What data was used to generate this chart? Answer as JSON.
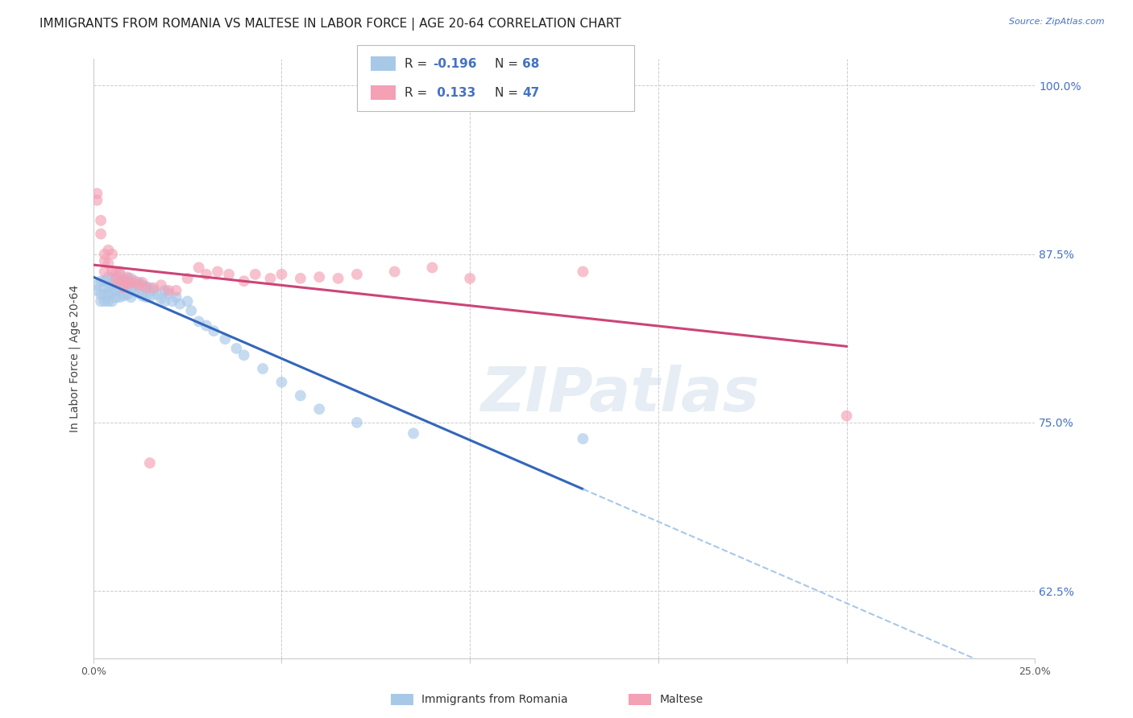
{
  "title": "IMMIGRANTS FROM ROMANIA VS MALTESE IN LABOR FORCE | AGE 20-64 CORRELATION CHART",
  "source": "Source: ZipAtlas.com",
  "ylabel": "In Labor Force | Age 20-64",
  "xlim": [
    0.0,
    0.25
  ],
  "ylim": [
    0.575,
    1.02
  ],
  "yticks": [
    0.625,
    0.75,
    0.875,
    1.0
  ],
  "ytick_labels": [
    "62.5%",
    "75.0%",
    "87.5%",
    "100.0%"
  ],
  "xticks": [
    0.0,
    0.05,
    0.1,
    0.15,
    0.2,
    0.25
  ],
  "xtick_labels": [
    "0.0%",
    "",
    "",
    "",
    "",
    "25.0%"
  ],
  "color_romania": "#a8c8e8",
  "color_maltese": "#f4a0b5",
  "line_color_romania": "#3366bb",
  "line_color_maltese": "#cc4477",
  "R_romania": -0.196,
  "N_romania": 68,
  "R_maltese": 0.133,
  "N_maltese": 47,
  "romania_x": [
    0.001,
    0.001,
    0.002,
    0.002,
    0.002,
    0.003,
    0.003,
    0.003,
    0.003,
    0.004,
    0.004,
    0.004,
    0.004,
    0.005,
    0.005,
    0.005,
    0.005,
    0.006,
    0.006,
    0.006,
    0.006,
    0.007,
    0.007,
    0.007,
    0.007,
    0.008,
    0.008,
    0.008,
    0.009,
    0.009,
    0.009,
    0.01,
    0.01,
    0.01,
    0.011,
    0.011,
    0.012,
    0.012,
    0.013,
    0.013,
    0.014,
    0.014,
    0.015,
    0.015,
    0.016,
    0.017,
    0.018,
    0.019,
    0.019,
    0.02,
    0.021,
    0.022,
    0.023,
    0.025,
    0.026,
    0.028,
    0.03,
    0.032,
    0.035,
    0.038,
    0.04,
    0.045,
    0.05,
    0.055,
    0.06,
    0.07,
    0.085,
    0.13
  ],
  "romania_y": [
    0.852,
    0.848,
    0.855,
    0.845,
    0.84,
    0.855,
    0.85,
    0.845,
    0.84,
    0.858,
    0.85,
    0.845,
    0.84,
    0.857,
    0.852,
    0.847,
    0.84,
    0.858,
    0.853,
    0.848,
    0.843,
    0.86,
    0.855,
    0.85,
    0.843,
    0.856,
    0.851,
    0.844,
    0.857,
    0.851,
    0.845,
    0.857,
    0.85,
    0.843,
    0.853,
    0.847,
    0.854,
    0.846,
    0.852,
    0.844,
    0.851,
    0.843,
    0.85,
    0.843,
    0.848,
    0.845,
    0.842,
    0.848,
    0.84,
    0.846,
    0.84,
    0.843,
    0.838,
    0.84,
    0.833,
    0.825,
    0.822,
    0.818,
    0.812,
    0.805,
    0.8,
    0.79,
    0.78,
    0.77,
    0.76,
    0.75,
    0.742,
    0.738
  ],
  "maltese_x": [
    0.001,
    0.001,
    0.002,
    0.002,
    0.003,
    0.003,
    0.003,
    0.004,
    0.004,
    0.005,
    0.005,
    0.006,
    0.006,
    0.007,
    0.007,
    0.008,
    0.008,
    0.009,
    0.009,
    0.01,
    0.011,
    0.012,
    0.013,
    0.014,
    0.015,
    0.016,
    0.018,
    0.02,
    0.022,
    0.025,
    0.028,
    0.03,
    0.033,
    0.036,
    0.04,
    0.043,
    0.047,
    0.05,
    0.055,
    0.06,
    0.065,
    0.07,
    0.08,
    0.09,
    0.1,
    0.13,
    0.2
  ],
  "maltese_y": [
    0.92,
    0.915,
    0.9,
    0.89,
    0.875,
    0.87,
    0.862,
    0.878,
    0.868,
    0.862,
    0.875,
    0.862,
    0.856,
    0.862,
    0.855,
    0.856,
    0.85,
    0.858,
    0.853,
    0.854,
    0.855,
    0.852,
    0.854,
    0.85,
    0.72,
    0.85,
    0.852,
    0.848,
    0.848,
    0.857,
    0.865,
    0.86,
    0.862,
    0.86,
    0.855,
    0.86,
    0.857,
    0.86,
    0.857,
    0.858,
    0.857,
    0.86,
    0.862,
    0.865,
    0.857,
    0.862,
    0.755
  ],
  "watermark": "ZIPatlas",
  "background_color": "#ffffff",
  "grid_color": "#cccccc",
  "tick_color_right": "#4472c4",
  "title_fontsize": 11,
  "axis_label_fontsize": 10,
  "tick_fontsize": 9
}
